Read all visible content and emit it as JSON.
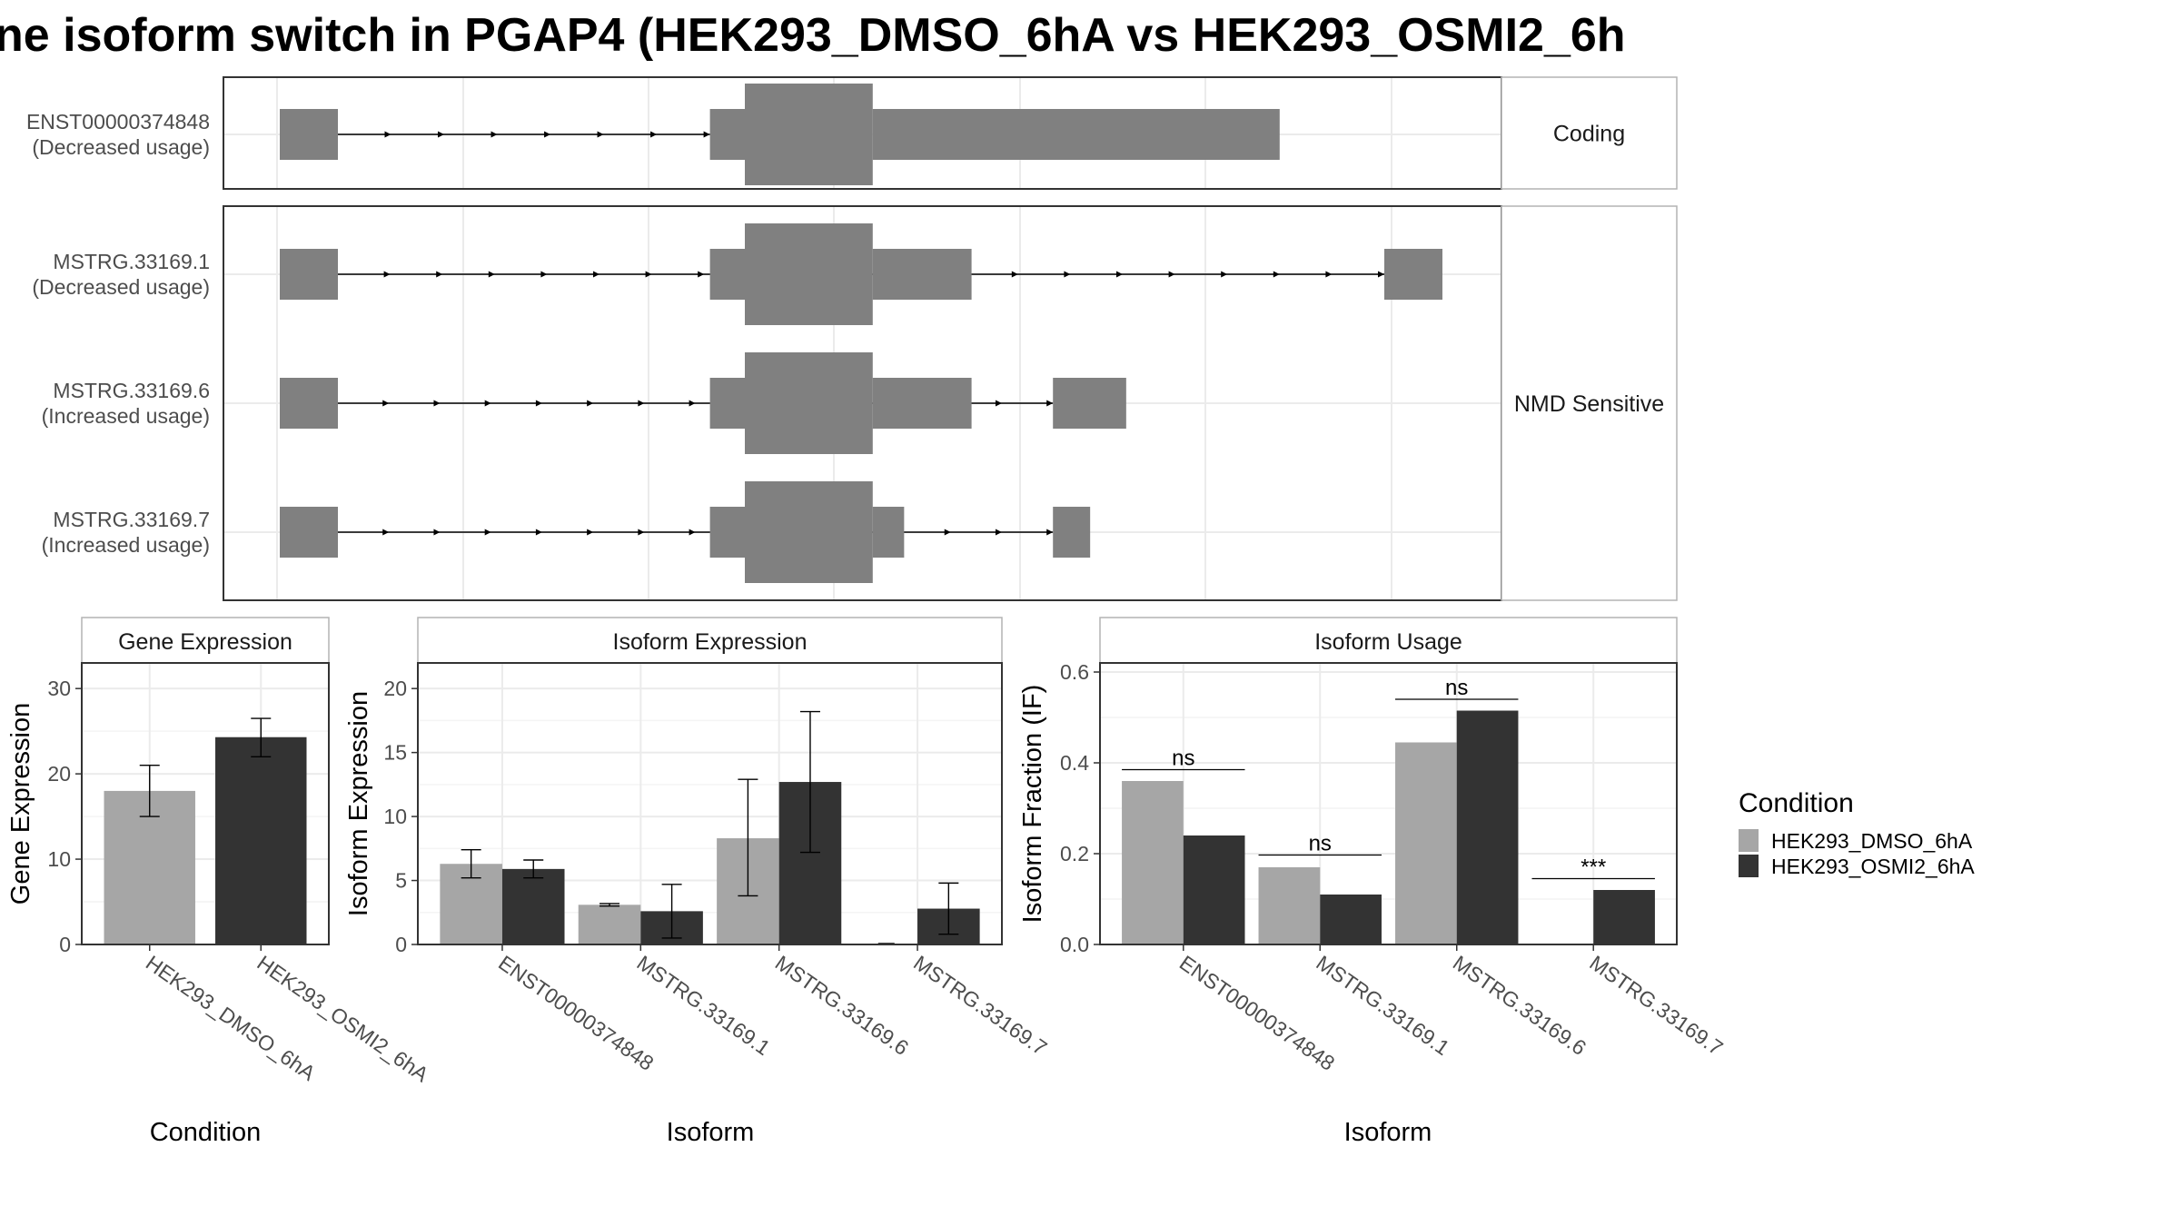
{
  "title": "ne isoform switch in PGAP4 (HEK293_DMSO_6hA vs HEK293_OSMI2_6h",
  "colors": {
    "dmso": "#a6a6a6",
    "osmi": "#333333",
    "exon": "#808080",
    "strip": "#ffffff",
    "grid": "#ebebeb",
    "panel_border": "#333333",
    "strip_border": "#b3b3b3"
  },
  "structure": {
    "groups": [
      {
        "label": "Coding",
        "isoforms": [
          {
            "name": "ENST00000374848",
            "usage": "(Decreased usage)",
            "exons": [
              [
                0.0,
                0.05,
                "utr"
              ],
              [
                0.37,
                0.4,
                "utr"
              ],
              [
                0.4,
                0.51,
                "cds"
              ],
              [
                0.51,
                0.86,
                "utr"
              ]
            ],
            "arrow_range": [
              0.05,
              0.37
            ]
          }
        ]
      },
      {
        "label": "NMD Sensitive",
        "isoforms": [
          {
            "name": "MSTRG.33169.1",
            "usage": "(Decreased usage)",
            "exons": [
              [
                0.0,
                0.05,
                "utr"
              ],
              [
                0.37,
                0.4,
                "utr"
              ],
              [
                0.4,
                0.51,
                "cds"
              ],
              [
                0.51,
                0.595,
                "utr"
              ],
              [
                0.95,
                1.0,
                "utr"
              ]
            ],
            "arrow_range": [
              0.05,
              0.95
            ]
          },
          {
            "name": "MSTRG.33169.6",
            "usage": "(Increased usage)",
            "exons": [
              [
                0.0,
                0.05,
                "utr"
              ],
              [
                0.37,
                0.4,
                "utr"
              ],
              [
                0.4,
                0.51,
                "cds"
              ],
              [
                0.51,
                0.595,
                "utr"
              ],
              [
                0.665,
                0.728,
                "utr"
              ]
            ],
            "arrow_range": [
              0.05,
              0.665
            ]
          },
          {
            "name": "MSTRG.33169.7",
            "usage": "(Increased usage)",
            "exons": [
              [
                0.0,
                0.05,
                "utr"
              ],
              [
                0.37,
                0.4,
                "utr"
              ],
              [
                0.4,
                0.51,
                "cds"
              ],
              [
                0.51,
                0.537,
                "utr"
              ],
              [
                0.665,
                0.697,
                "utr"
              ]
            ],
            "arrow_range": [
              0.05,
              0.665
            ]
          }
        ]
      }
    ]
  },
  "chart_data": [
    {
      "type": "bar",
      "title": "Gene Expression",
      "xlabel": "Condition",
      "ylabel": "Gene Expression",
      "ylim": [
        0,
        33
      ],
      "yticks": [
        0,
        10,
        20,
        30
      ],
      "categories": [
        "HEK293_DMSO_6hA",
        "HEK293_OSMI2_6hA"
      ],
      "series": [
        {
          "values": [
            18.0,
            24.3
          ],
          "errors": [
            [
              15.0,
              21.0
            ],
            [
              22.0,
              26.5
            ]
          ]
        }
      ]
    },
    {
      "type": "bar",
      "title": "Isoform Expression",
      "xlabel": "Isoform",
      "ylabel": "Isoform Expression",
      "ylim": [
        0,
        22
      ],
      "yticks": [
        0,
        5,
        10,
        15,
        20
      ],
      "categories": [
        "ENST00000374848",
        "MSTRG.33169.1",
        "MSTRG.33169.6",
        "MSTRG.33169.7"
      ],
      "series": [
        {
          "name": "HEK293_DMSO_6hA",
          "values": [
            6.3,
            3.1,
            8.3,
            0.0
          ],
          "errors": [
            [
              5.2,
              7.4
            ],
            [
              3.0,
              3.2
            ],
            [
              3.8,
              12.9
            ],
            [
              0.0,
              0.0
            ]
          ]
        },
        {
          "name": "HEK293_OSMI2_6hA",
          "values": [
            5.9,
            2.6,
            12.7,
            2.8
          ],
          "errors": [
            [
              5.2,
              6.6
            ],
            [
              0.5,
              4.7
            ],
            [
              7.2,
              18.2
            ],
            [
              0.8,
              4.8
            ]
          ]
        }
      ]
    },
    {
      "type": "bar",
      "title": "Isoform Usage",
      "xlabel": "Isoform",
      "ylabel": "Isoform Fraction (IF)",
      "ylim": [
        0,
        0.62
      ],
      "yticks": [
        "0.0",
        "0.2",
        "0.4",
        "0.6"
      ],
      "categories": [
        "ENST00000374848",
        "MSTRG.33169.1",
        "MSTRG.33169.6",
        "MSTRG.33169.7"
      ],
      "series": [
        {
          "name": "HEK293_DMSO_6hA",
          "values": [
            0.36,
            0.17,
            0.445,
            0.0
          ]
        },
        {
          "name": "HEK293_OSMI2_6hA",
          "values": [
            0.24,
            0.11,
            0.515,
            0.12
          ]
        }
      ],
      "significance": [
        "ns",
        "ns",
        "ns",
        "***"
      ],
      "sig_heights": [
        0.385,
        0.197,
        0.54,
        0.145
      ]
    }
  ],
  "legend": {
    "title": "Condition",
    "items": [
      "HEK293_DMSO_6hA",
      "HEK293_OSMI2_6hA"
    ]
  }
}
